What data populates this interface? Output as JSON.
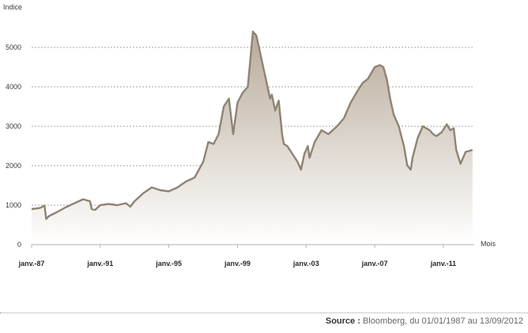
{
  "chart_data": {
    "type": "area",
    "title": "",
    "ylabel": "Indice",
    "xlabel": "Mois",
    "ylim": [
      0,
      6000
    ],
    "yticks": [
      0,
      1000,
      2000,
      3000,
      4000,
      5000
    ],
    "xticks": [
      "janv.-87",
      "janv.-91",
      "janv.-95",
      "janv.-99",
      "janv.-03",
      "janv.-07",
      "janv.-11"
    ],
    "grid": true,
    "colors": {
      "line": "#8f8372",
      "fill_top": "#b7aa99",
      "fill_bottom": "#ffffff",
      "grid": "#888888"
    },
    "series": [
      {
        "x": [
          1987.0,
          1987.5,
          1987.75,
          1987.85,
          1988.0,
          1988.5,
          1989.0,
          1989.5,
          1990.0,
          1990.4,
          1990.5,
          1990.7,
          1991.0,
          1991.5,
          1992.0,
          1992.5,
          1992.75,
          1993.0,
          1993.5,
          1994.0,
          1994.5,
          1995.0,
          1995.5,
          1996.0,
          1996.5,
          1997.0,
          1997.3,
          1997.6,
          1997.9,
          1998.2,
          1998.5,
          1998.75,
          1999.0,
          1999.3,
          1999.6,
          1999.9,
          2000.1,
          2000.3,
          2000.5,
          2000.7,
          2000.9,
          2001.0,
          2001.2,
          2001.4,
          2001.6,
          2001.7,
          2001.9,
          2002.2,
          2002.5,
          2002.7,
          2002.9,
          2003.1,
          2003.2,
          2003.5,
          2003.9,
          2004.3,
          2004.8,
          2005.2,
          2005.6,
          2006.0,
          2006.3,
          2006.6,
          2007.0,
          2007.3,
          2007.5,
          2007.7,
          2007.9,
          2008.1,
          2008.4,
          2008.7,
          2008.9,
          2009.1,
          2009.2,
          2009.5,
          2009.8,
          2010.2,
          2010.4,
          2010.6,
          2010.9,
          2011.2,
          2011.4,
          2011.6,
          2011.75,
          2012.0,
          2012.3,
          2012.7
        ],
        "values": [
          900,
          930,
          990,
          650,
          720,
          830,
          950,
          1050,
          1150,
          1100,
          900,
          880,
          1000,
          1030,
          1000,
          1050,
          960,
          1100,
          1300,
          1450,
          1380,
          1350,
          1450,
          1600,
          1700,
          2100,
          2600,
          2550,
          2800,
          3500,
          3700,
          2800,
          3600,
          3850,
          4000,
          5400,
          5300,
          4900,
          4500,
          4100,
          3700,
          3800,
          3400,
          3650,
          2800,
          2550,
          2500,
          2300,
          2100,
          1900,
          2300,
          2500,
          2200,
          2600,
          2900,
          2800,
          3000,
          3200,
          3600,
          3900,
          4100,
          4200,
          4500,
          4550,
          4500,
          4200,
          3700,
          3300,
          3000,
          2500,
          2000,
          1900,
          2200,
          2700,
          3000,
          2900,
          2800,
          2750,
          2850,
          3050,
          2900,
          2950,
          2400,
          2050,
          2350,
          2400
        ]
      }
    ]
  },
  "source": {
    "label": "Source :",
    "text": " Bloomberg, du 01/01/1987 au 13/09/2012"
  }
}
